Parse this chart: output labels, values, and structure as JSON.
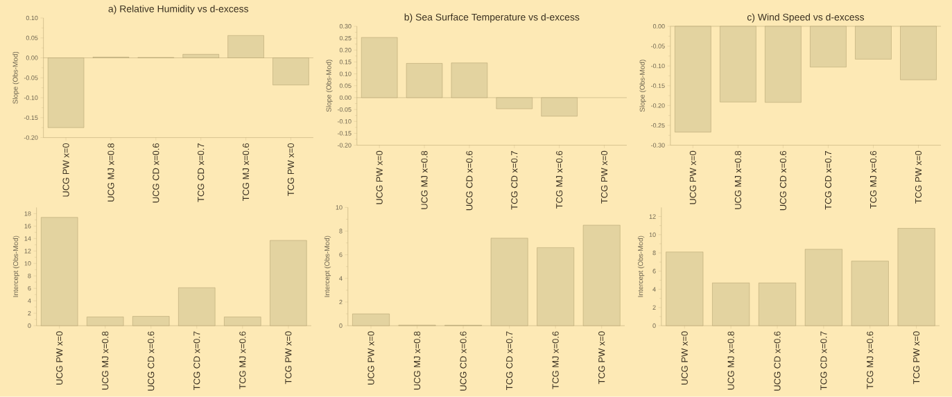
{
  "chart_data": [
    {
      "type": "bar",
      "title": "a) Relative Humidity vs d-excess",
      "ylabel": "Slope (Obs-Mod)",
      "categories": [
        "UCG PW x=0",
        "UCG MJ x=0.8",
        "UCG CD x=0.6",
        "TCG CD x=0.7",
        "TCG MJ x=0.6",
        "TCG PW x=0"
      ],
      "values": [
        -0.175,
        0.002,
        0.001,
        0.009,
        0.056,
        -0.068
      ],
      "color": "#e3d3a0",
      "ref_lines": [
        {
          "axis": "y",
          "value": 0
        }
      ],
      "ylim": [
        -0.2,
        0.1
      ],
      "yticks": [
        {
          "value": -0.2,
          "label": "-0.20"
        },
        {
          "value": -0.15,
          "label": "-0.15"
        },
        {
          "value": -0.1,
          "label": "-0.10"
        },
        {
          "value": -0.05,
          "label": "-0.05"
        },
        {
          "value": 0,
          "label": "0.00"
        },
        {
          "value": 0.05,
          "label": "0.05"
        },
        {
          "value": 0.1,
          "label": "0.10"
        }
      ]
    },
    {
      "type": "bar",
      "title": "b) Sea Surface Temperature vs d-excess",
      "ylabel": "Slope (Obs-Mod)",
      "categories": [
        "UCG PW x=0",
        "UCG MJ x=0.8",
        "UCG CD x=0.6",
        "TCG CD x=0.7",
        "TCG MJ x=0.6",
        "TCG PW x=0"
      ],
      "values": [
        0.253,
        0.144,
        0.146,
        -0.047,
        -0.078,
        null
      ],
      "color": "#e3d3a0",
      "ref_lines": [
        {
          "axis": "y",
          "value": 0
        }
      ],
      "ylim": [
        -0.2,
        0.3
      ],
      "yticks": [
        {
          "value": -0.2,
          "label": "-0.20"
        },
        {
          "value": -0.15,
          "label": "-0.15"
        },
        {
          "value": -0.1,
          "label": "-0.10"
        },
        {
          "value": -0.05,
          "label": "-0.05"
        },
        {
          "value": 0,
          "label": "0.00"
        },
        {
          "value": 0.05,
          "label": "0.05"
        },
        {
          "value": 0.1,
          "label": "0.10"
        },
        {
          "value": 0.15,
          "label": "0.15"
        },
        {
          "value": 0.2,
          "label": "0.20"
        },
        {
          "value": 0.25,
          "label": "0.25"
        },
        {
          "value": 0.3,
          "label": "0.30"
        }
      ]
    },
    {
      "type": "bar",
      "title": "c) Wind Speed vs d-excess",
      "ylabel": "Slope (Obs-Mod)",
      "categories": [
        "UCG PW x=0",
        "UCG MJ x=0.8",
        "UCG CD x=0.6",
        "TCG CD x=0.7",
        "TCG MJ x=0.6",
        "TCG PW x=0"
      ],
      "values": [
        -0.267,
        -0.191,
        -0.192,
        -0.103,
        -0.083,
        -0.135
      ],
      "color": "#e3d3a0",
      "ref_lines": [
        {
          "axis": "y",
          "value": 0
        }
      ],
      "ylim": [
        -0.3,
        0
      ],
      "yticks": [
        {
          "value": -0.3,
          "label": "-0.30"
        },
        {
          "value": -0.25,
          "label": "-0.25"
        },
        {
          "value": -0.2,
          "label": "-0.20"
        },
        {
          "value": -0.15,
          "label": "-0.15"
        },
        {
          "value": -0.1,
          "label": "-0.10"
        },
        {
          "value": -0.05,
          "label": "-0.05"
        },
        {
          "value": 0,
          "label": "0.00"
        }
      ]
    },
    {
      "type": "bar",
      "ylabel": "Intercept (Obs-Mod)",
      "categories": [
        "UCG PW x=0",
        "UCG MJ x=0.8",
        "UCG CD x=0.6",
        "TCG CD x=0.7",
        "TCG MJ x=0.6",
        "TCG PW x=0"
      ],
      "values": [
        17.4,
        1.4,
        1.5,
        6.1,
        1.4,
        13.7
      ],
      "color": "#e3d3a0",
      "ylim": [
        0,
        19
      ],
      "yticks": [
        0,
        2,
        4,
        6,
        8,
        10,
        12,
        14,
        16,
        18
      ]
    },
    {
      "type": "bar",
      "ylabel": "Intercept (Obs-Mod)",
      "categories": [
        "UCG PW x=0",
        "UCG MJ x=0.8",
        "UCG CD x=0.6",
        "TCG CD x=0.7",
        "TCG MJ x=0.6",
        "TCG PW x=0"
      ],
      "values": [
        1.0,
        0.05,
        0.04,
        7.4,
        6.6,
        8.5
      ],
      "color": "#e3d3a0",
      "ylim": [
        0,
        10
      ],
      "yticks": [
        0,
        2,
        4,
        6,
        8,
        10
      ]
    },
    {
      "type": "bar",
      "ylabel": "Intercept (Obs-Mod)",
      "categories": [
        "UCG PW x=0",
        "UCG MJ x=0.8",
        "UCG CD x=0.6",
        "TCG CD x=0.7",
        "TCG MJ x=0.6",
        "TCG PW x=0"
      ],
      "values": [
        8.1,
        4.7,
        4.7,
        8.4,
        7.1,
        10.7
      ],
      "color": "#e3d3a0",
      "ylim": [
        0,
        13
      ],
      "yticks": [
        0,
        2,
        4,
        6,
        8,
        10,
        12
      ]
    }
  ]
}
